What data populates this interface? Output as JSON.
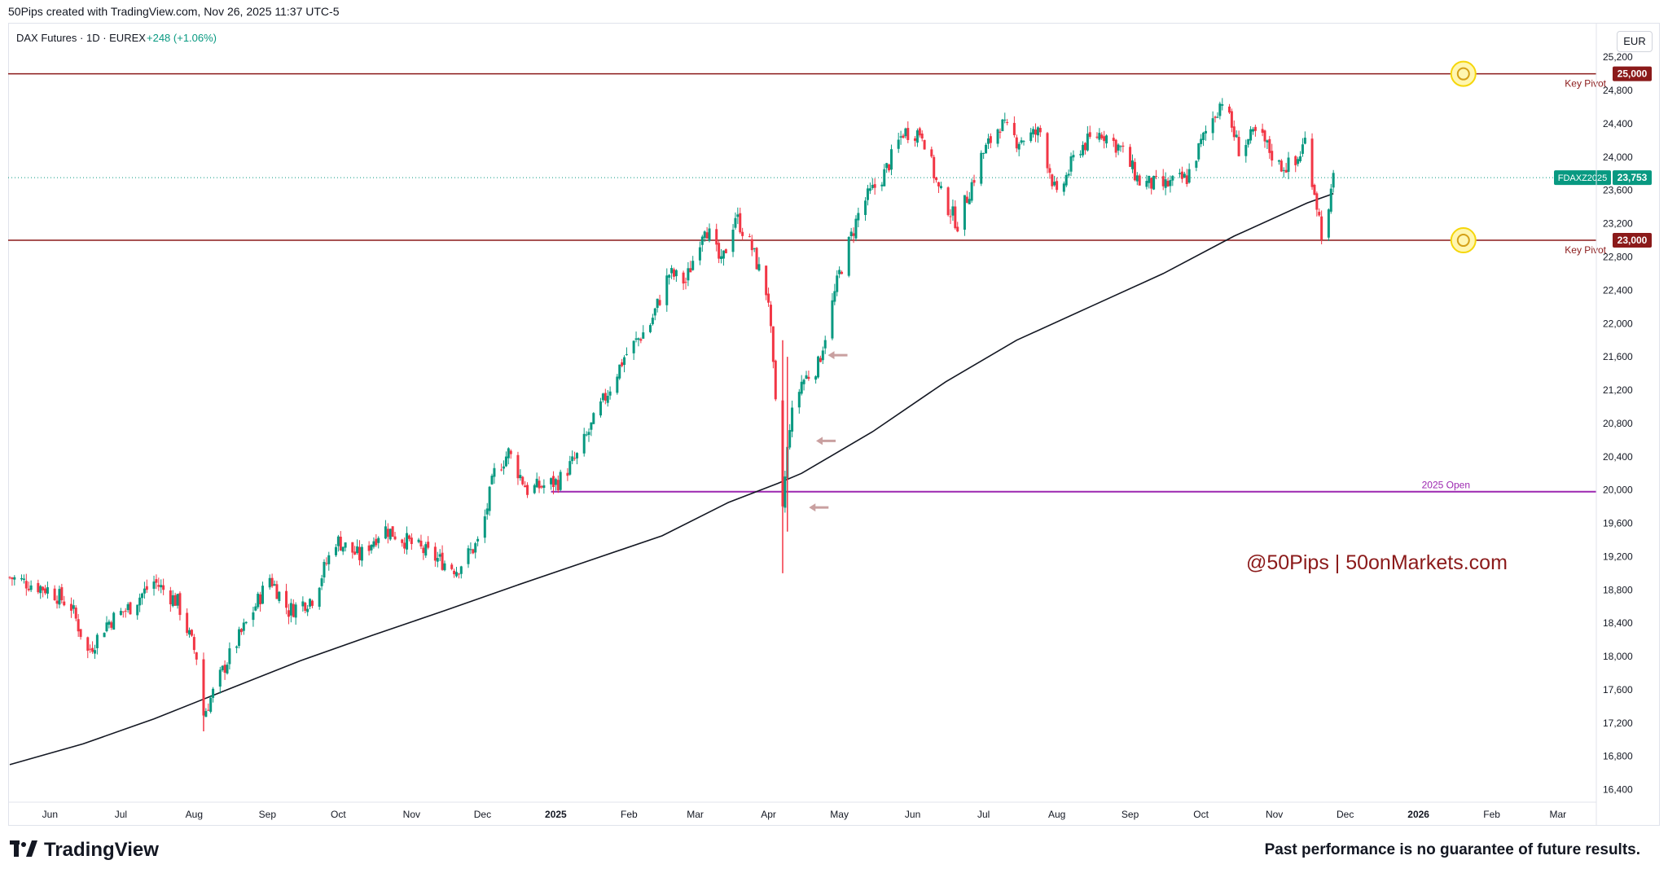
{
  "header": {
    "credit": "50Pips created with TradingView.com, Nov 26, 2025 11:37 UTC-5"
  },
  "legend": {
    "symbol": "DAX Futures · 1D · EUREX",
    "change": "+248 (+1.06%)",
    "change_color": "#089981"
  },
  "currency_button": "EUR",
  "footer": {
    "logo_text": "TradingView",
    "disclaimer": "Past performance is no guarantee of future results."
  },
  "watermark": "@50Pips | 50onMarkets.com",
  "colors": {
    "up": "#089981",
    "down": "#f23645",
    "key_pivot": "#8b1a1a",
    "open_line": "#9c27b0",
    "ma": "#131722",
    "price_line": "#089981",
    "arrow": "#c9a0a0",
    "watermark": "#8b1a1a",
    "marker": "#f5d60a"
  },
  "chart_data": {
    "type": "candlestick",
    "symbol": "FDAXZ2025",
    "currency": "EUR",
    "ylim": [
      16200,
      25300
    ],
    "y_ticks": [
      "16,400",
      "16,800",
      "17,200",
      "17,600",
      "18,000",
      "18,400",
      "18,800",
      "19,200",
      "19,600",
      "20,000",
      "20,400",
      "20,800",
      "21,200",
      "21,600",
      "22,000",
      "22,400",
      "22,800",
      "23,200",
      "23,600",
      "24,000",
      "24,400",
      "24,800",
      "25,200"
    ],
    "x_ticks": [
      {
        "label": "Jun",
        "x": "2024-06-01",
        "bold": false
      },
      {
        "label": "Jul",
        "x": "2024-07-01",
        "bold": false
      },
      {
        "label": "Aug",
        "x": "2024-08-01",
        "bold": false
      },
      {
        "label": "Sep",
        "x": "2024-09-01",
        "bold": false
      },
      {
        "label": "Oct",
        "x": "2024-10-01",
        "bold": false
      },
      {
        "label": "Nov",
        "x": "2024-11-01",
        "bold": false
      },
      {
        "label": "Dec",
        "x": "2024-12-01",
        "bold": false
      },
      {
        "label": "2025",
        "x": "2025-01-01",
        "bold": true
      },
      {
        "label": "Feb",
        "x": "2025-02-01",
        "bold": false
      },
      {
        "label": "Mar",
        "x": "2025-03-01",
        "bold": false
      },
      {
        "label": "Apr",
        "x": "2025-04-01",
        "bold": false
      },
      {
        "label": "May",
        "x": "2025-05-01",
        "bold": false
      },
      {
        "label": "Jun",
        "x": "2025-06-01",
        "bold": false
      },
      {
        "label": "Jul",
        "x": "2025-07-01",
        "bold": false
      },
      {
        "label": "Aug",
        "x": "2025-08-01",
        "bold": false
      },
      {
        "label": "Sep",
        "x": "2025-09-01",
        "bold": false
      },
      {
        "label": "Oct",
        "x": "2025-10-01",
        "bold": false
      },
      {
        "label": "Nov",
        "x": "2025-11-01",
        "bold": false
      },
      {
        "label": "Dec",
        "x": "2025-12-01",
        "bold": false
      },
      {
        "label": "2026",
        "x": "2026-01-01",
        "bold": true
      },
      {
        "label": "Feb",
        "x": "2026-02-01",
        "bold": false
      },
      {
        "label": "Mar",
        "x": "2026-03-01",
        "bold": false
      }
    ],
    "x_range": [
      "2024-05-15",
      "2026-03-20"
    ],
    "levels": [
      {
        "name": "Key Pivot",
        "value": 25000,
        "label": "25,000",
        "style": "solid"
      },
      {
        "name": "Key Pivot",
        "value": 23000,
        "label": "23,000",
        "style": "solid"
      },
      {
        "name": "2025 Open",
        "value": 19980,
        "start": "2024-12-30",
        "style": "solid"
      }
    ],
    "last_price": {
      "symbol": "FDAXZ2025",
      "value": 23753,
      "label": "23,753"
    },
    "price_path": [
      [
        "2024-05-15",
        18950
      ],
      [
        "2024-06-01",
        18800
      ],
      [
        "2024-06-10",
        18600
      ],
      [
        "2024-06-17",
        18050
      ],
      [
        "2024-06-25",
        18400
      ],
      [
        "2024-07-05",
        18600
      ],
      [
        "2024-07-15",
        18900
      ],
      [
        "2024-07-25",
        18650
      ],
      [
        "2024-08-02",
        18000
      ],
      [
        "2024-08-05",
        17300
      ],
      [
        "2024-08-15",
        17950
      ],
      [
        "2024-08-25",
        18500
      ],
      [
        "2024-09-02",
        18950
      ],
      [
        "2024-09-10",
        18550
      ],
      [
        "2024-09-20",
        18700
      ],
      [
        "2024-09-30",
        19400
      ],
      [
        "2024-10-10",
        19200
      ],
      [
        "2024-10-20",
        19550
      ],
      [
        "2024-11-01",
        19350
      ],
      [
        "2024-11-10",
        19200
      ],
      [
        "2024-11-20",
        19050
      ],
      [
        "2024-11-30",
        19400
      ],
      [
        "2024-12-06",
        20200
      ],
      [
        "2024-12-12",
        20450
      ],
      [
        "2024-12-20",
        20000
      ],
      [
        "2025-01-02",
        20100
      ],
      [
        "2025-01-10",
        20400
      ],
      [
        "2025-01-20",
        21000
      ],
      [
        "2025-01-30",
        21600
      ],
      [
        "2025-02-10",
        22000
      ],
      [
        "2025-02-18",
        22600
      ],
      [
        "2025-02-25",
        22500
      ],
      [
        "2025-03-05",
        23200
      ],
      [
        "2025-03-12",
        22700
      ],
      [
        "2025-03-18",
        23300
      ],
      [
        "2025-03-25",
        22900
      ],
      [
        "2025-04-01",
        22300
      ],
      [
        "2025-04-04",
        21000
      ],
      [
        "2025-04-07",
        19800
      ],
      [
        "2025-04-10",
        20800
      ],
      [
        "2025-04-15",
        21300
      ],
      [
        "2025-04-22",
        21500
      ],
      [
        "2025-05-01",
        22600
      ],
      [
        "2025-05-10",
        23400
      ],
      [
        "2025-05-20",
        23800
      ],
      [
        "2025-05-28",
        24300
      ],
      [
        "2025-06-05",
        24300
      ],
      [
        "2025-06-12",
        23600
      ],
      [
        "2025-06-20",
        23200
      ],
      [
        "2025-06-30",
        24000
      ],
      [
        "2025-07-08",
        24400
      ],
      [
        "2025-07-15",
        24200
      ],
      [
        "2025-07-25",
        24300
      ],
      [
        "2025-08-01",
        23500
      ],
      [
        "2025-08-10",
        24100
      ],
      [
        "2025-08-20",
        24300
      ],
      [
        "2025-08-28",
        24100
      ],
      [
        "2025-09-05",
        23700
      ],
      [
        "2025-09-15",
        23650
      ],
      [
        "2025-09-25",
        23750
      ],
      [
        "2025-10-03",
        24300
      ],
      [
        "2025-10-10",
        24700
      ],
      [
        "2025-10-17",
        24100
      ],
      [
        "2025-10-25",
        24300
      ],
      [
        "2025-11-03",
        23900
      ],
      [
        "2025-11-10",
        23900
      ],
      [
        "2025-11-14",
        24200
      ],
      [
        "2025-11-18",
        23600
      ],
      [
        "2025-11-21",
        23100
      ],
      [
        "2025-11-24",
        23300
      ],
      [
        "2025-11-26",
        23753
      ]
    ],
    "ma_path": [
      [
        "2024-05-15",
        16700
      ],
      [
        "2024-06-15",
        16950
      ],
      [
        "2024-07-15",
        17250
      ],
      [
        "2024-08-15",
        17600
      ],
      [
        "2024-09-15",
        17950
      ],
      [
        "2024-10-15",
        18250
      ],
      [
        "2024-11-15",
        18550
      ],
      [
        "2024-12-15",
        18850
      ],
      [
        "2025-01-15",
        19150
      ],
      [
        "2025-02-15",
        19450
      ],
      [
        "2025-03-15",
        19850
      ],
      [
        "2025-04-05",
        20080
      ],
      [
        "2025-04-15",
        20200
      ],
      [
        "2025-05-15",
        20700
      ],
      [
        "2025-06-15",
        21300
      ],
      [
        "2025-07-15",
        21800
      ],
      [
        "2025-08-15",
        22200
      ],
      [
        "2025-09-15",
        22600
      ],
      [
        "2025-10-15",
        23050
      ],
      [
        "2025-11-15",
        23450
      ],
      [
        "2025-11-26",
        23560
      ]
    ],
    "spikes": [
      {
        "date": "2024-08-05",
        "low": 17100,
        "high": 17650
      },
      {
        "date": "2025-04-07",
        "low": 19000,
        "high": 21800
      },
      {
        "date": "2025-04-09",
        "low": 19500,
        "high": 21600
      }
    ],
    "arrows": [
      {
        "date": "2025-04-22",
        "value": 21620
      },
      {
        "date": "2025-04-17",
        "value": 20590
      },
      {
        "date": "2025-04-14",
        "value": 19790
      }
    ],
    "markers": [
      {
        "date": "2026-01-20",
        "value": 25000
      },
      {
        "date": "2026-01-20",
        "value": 23000
      }
    ]
  }
}
